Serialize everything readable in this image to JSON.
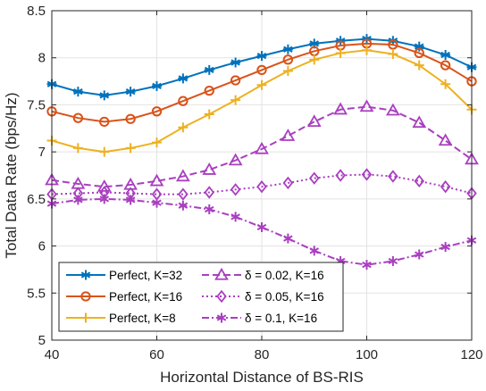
{
  "chart_data": {
    "type": "line",
    "title": "",
    "xlabel": "Horizontal Distance of BS-RIS",
    "ylabel": "Total Data Rate (bps/Hz)",
    "xlim": [
      40,
      120
    ],
    "ylim": [
      5,
      8.5
    ],
    "x_ticks": [
      40,
      60,
      80,
      100,
      120
    ],
    "y_ticks": [
      5,
      5.5,
      6,
      6.5,
      7,
      7.5,
      8,
      8.5
    ],
    "grid": true,
    "legend_position": "bottom-left",
    "x": [
      40,
      45,
      50,
      55,
      60,
      65,
      70,
      75,
      80,
      85,
      90,
      95,
      100,
      105,
      110,
      115,
      120
    ],
    "series": [
      {
        "name": "Perfect, K=32",
        "color": "#0072BD",
        "marker": "star",
        "dash": "solid",
        "values": [
          7.72,
          7.64,
          7.6,
          7.64,
          7.7,
          7.78,
          7.87,
          7.95,
          8.02,
          8.09,
          8.15,
          8.18,
          8.2,
          8.18,
          8.12,
          8.03,
          7.9
        ]
      },
      {
        "name": "Perfect, K=16",
        "color": "#D95319",
        "marker": "circle",
        "dash": "solid",
        "values": [
          7.43,
          7.36,
          7.32,
          7.35,
          7.43,
          7.54,
          7.65,
          7.76,
          7.87,
          7.98,
          8.07,
          8.13,
          8.15,
          8.14,
          8.05,
          7.92,
          7.75
        ]
      },
      {
        "name": "Perfect, K=8",
        "color": "#EDB120",
        "marker": "plus",
        "dash": "solid",
        "values": [
          7.12,
          7.04,
          7.0,
          7.04,
          7.1,
          7.26,
          7.4,
          7.55,
          7.71,
          7.86,
          7.98,
          8.05,
          8.08,
          8.04,
          7.92,
          7.72,
          7.45
        ]
      },
      {
        "name": "δ = 0.02, K=16",
        "color": "#A93FBF",
        "marker": "triangle",
        "dash": "dashed",
        "values": [
          6.7,
          6.66,
          6.63,
          6.65,
          6.69,
          6.74,
          6.81,
          6.91,
          7.03,
          7.17,
          7.32,
          7.45,
          7.48,
          7.44,
          7.31,
          7.12,
          6.92
        ]
      },
      {
        "name": "δ = 0.05, K=16",
        "color": "#A93FBF",
        "marker": "diamond",
        "dash": "dotted",
        "values": [
          6.55,
          6.56,
          6.57,
          6.56,
          6.55,
          6.55,
          6.57,
          6.6,
          6.63,
          6.67,
          6.72,
          6.75,
          6.76,
          6.74,
          6.69,
          6.63,
          6.56
        ]
      },
      {
        "name": "δ = 0.1, K=16",
        "color": "#A93FBF",
        "marker": "asterisk",
        "dash": "dashdot",
        "values": [
          6.45,
          6.49,
          6.5,
          6.49,
          6.46,
          6.43,
          6.39,
          6.31,
          6.2,
          6.08,
          5.95,
          5.84,
          5.8,
          5.84,
          5.91,
          5.99,
          6.06
        ]
      }
    ]
  }
}
